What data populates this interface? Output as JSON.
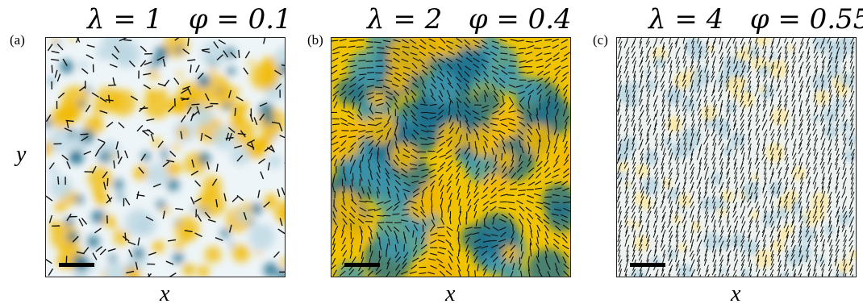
{
  "panels": [
    {
      "tag": "(a)",
      "title": "λ = 1   φ = 0.1",
      "xlabel": "x",
      "background": "#eef5f8",
      "style": "sparse"
    },
    {
      "tag": "(b)",
      "title": "λ = 2   φ = 0.4",
      "xlabel": "x",
      "background": "#f0c400",
      "style": "vortex"
    },
    {
      "tag": "(c)",
      "title": "λ = 4   φ = 0.55",
      "xlabel": "x",
      "background": "#eef3f1",
      "style": "aligned"
    }
  ],
  "ylabel": "y",
  "colors": {
    "blue": "#1e6f8c",
    "lightblue": "#b9d6e2",
    "yellow": "#f2b900",
    "paleyellow": "#fbe9a3",
    "rod": "#111111"
  }
}
